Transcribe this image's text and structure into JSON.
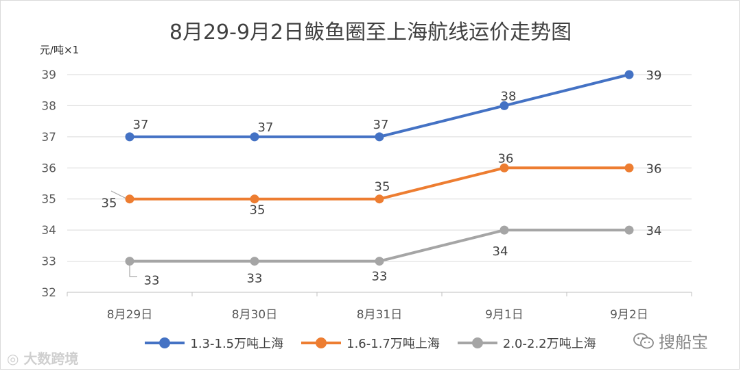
{
  "chart_data": {
    "type": "line",
    "title": "8月29-9月2日鲅鱼圈至上海航线运价走势图",
    "ylabel": "元/吨×1",
    "xlabel": "",
    "categories": [
      "8月29日",
      "8月30日",
      "8月31日",
      "9月1日",
      "9月2日"
    ],
    "ylim": [
      32,
      39
    ],
    "yticks": [
      32,
      33,
      34,
      35,
      36,
      37,
      38,
      39
    ],
    "grid": true,
    "legend_position": "bottom",
    "series": [
      {
        "name": "1.3-1.5万吨上海",
        "values": [
          37,
          37,
          37,
          38,
          39
        ],
        "color": "#4472C4",
        "labels": [
          "37",
          "37",
          "37",
          "38",
          "39"
        ]
      },
      {
        "name": "1.6-1.7万吨上海",
        "values": [
          35,
          35,
          35,
          36,
          36
        ],
        "color": "#ED7D31",
        "labels": [
          "35",
          "35",
          "35",
          "36",
          "36"
        ]
      },
      {
        "name": "2.0-2.2万吨上海",
        "values": [
          33,
          33,
          33,
          34,
          34
        ],
        "color": "#A5A5A5",
        "labels": [
          "33",
          "33",
          "33",
          "34",
          "34"
        ]
      }
    ]
  },
  "watermarks": {
    "left": "大数跨境",
    "right": "搜船宝"
  },
  "icons": {
    "left_watermark_icon": "weibo-icon",
    "right_watermark_icon": "wechat-icon"
  }
}
